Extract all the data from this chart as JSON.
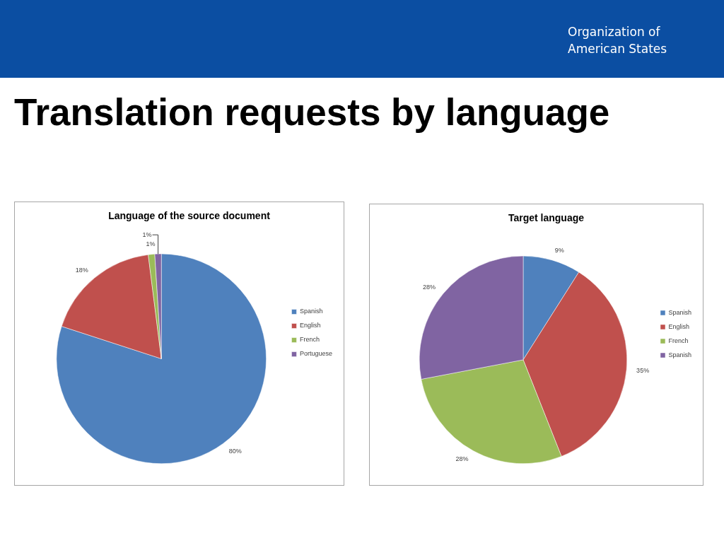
{
  "chart_data": [
    {
      "type": "pie",
      "title": "Language of the source document",
      "categories": [
        "Spanish",
        "English",
        "French",
        "Portuguese"
      ],
      "values": [
        80,
        18,
        1,
        1
      ],
      "colors": [
        "#4f81bd",
        "#c0504d",
        "#9bbb59",
        "#8064a2"
      ],
      "value_labels": [
        "80%",
        "18%",
        "1%",
        "1%"
      ],
      "legend": "right",
      "annotations": [
        "Organization of American States",
        "Translation requests by language"
      ]
    },
    {
      "type": "pie",
      "title": "Target language",
      "categories": [
        "Spanish",
        "English",
        "French",
        "Spanish"
      ],
      "values": [
        9,
        35,
        28,
        28
      ],
      "colors": [
        "#4f81bd",
        "#c0504d",
        "#9bbb59",
        "#8064a2"
      ],
      "value_labels": [
        "9%",
        "35%",
        "28%",
        "28%"
      ],
      "legend": "right"
    }
  ]
}
